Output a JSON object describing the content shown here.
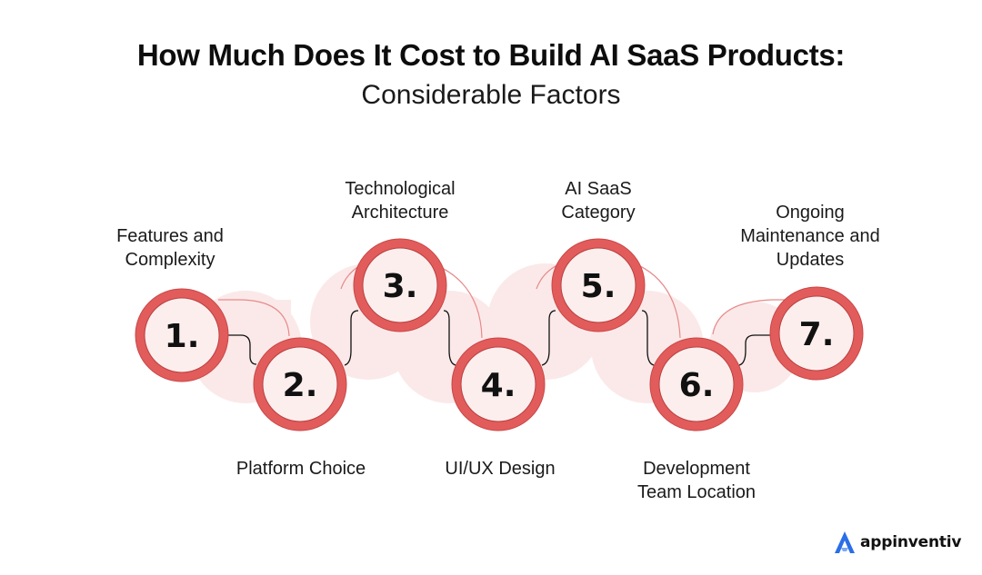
{
  "header": {
    "title": "How Much Does It Cost to Build AI SaaS Products:",
    "subtitle": "Considerable Factors"
  },
  "factors": [
    {
      "number": "1.",
      "label": "Features and\nComplexity"
    },
    {
      "number": "2.",
      "label": "Platform Choice"
    },
    {
      "number": "3.",
      "label": "Technological\nArchitecture"
    },
    {
      "number": "4.",
      "label": "UI/UX Design"
    },
    {
      "number": "5.",
      "label": "AI SaaS\nCategory"
    },
    {
      "number": "6.",
      "label": "Development\nTeam Location"
    },
    {
      "number": "7.",
      "label": "Ongoing\nMaintenance and\nUpdates"
    }
  ],
  "brand": {
    "name": "appinventiv"
  },
  "colors": {
    "ring": "#e25c5c",
    "ring_dark": "#c94646",
    "inner": "#fdeeee",
    "halo": "#fbe6e6",
    "number": "#111111",
    "logo_blue": "#2a6ee8"
  }
}
